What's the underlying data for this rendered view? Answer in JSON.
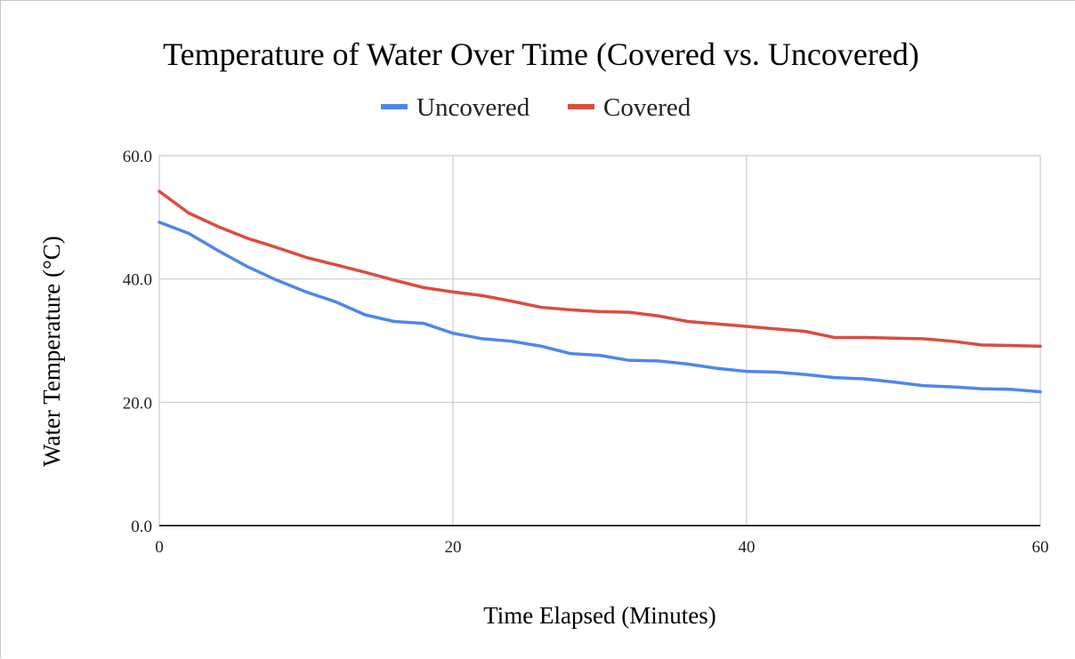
{
  "chart_data": {
    "type": "line",
    "title": "Temperature of Water Over Time (Covered vs. Uncovered)",
    "xlabel": "Time Elapsed (Minutes)",
    "ylabel": "Water Temperature (°C)",
    "xlim": [
      0,
      60
    ],
    "ylim": [
      0,
      60
    ],
    "x_ticks": [
      "0",
      "20",
      "40",
      "60"
    ],
    "y_ticks": [
      "0.0",
      "20.0",
      "40.0",
      "60.0"
    ],
    "grid": true,
    "legend_position": "top",
    "x": [
      0,
      2,
      4,
      6,
      8,
      10,
      12,
      14,
      16,
      18,
      20,
      22,
      24,
      26,
      28,
      30,
      32,
      34,
      36,
      38,
      40,
      42,
      44,
      46,
      48,
      50,
      52,
      54,
      56,
      58,
      60
    ],
    "series": [
      {
        "name": "Uncovered",
        "color": "#4f86ec",
        "values": [
          49.2,
          47.4,
          44.6,
          42.0,
          39.8,
          37.9,
          36.3,
          34.2,
          33.1,
          32.8,
          31.2,
          30.3,
          29.9,
          29.1,
          27.9,
          27.6,
          26.8,
          26.7,
          26.2,
          25.5,
          25.0,
          24.9,
          24.5,
          24.0,
          23.8,
          23.3,
          22.7,
          22.5,
          22.2,
          22.1,
          21.7
        ]
      },
      {
        "name": "Covered",
        "color": "#db4c3f",
        "values": [
          54.2,
          50.7,
          48.5,
          46.6,
          45.1,
          43.5,
          42.3,
          41.1,
          39.8,
          38.6,
          37.9,
          37.3,
          36.4,
          35.4,
          35.0,
          34.7,
          34.6,
          34.0,
          33.1,
          32.7,
          32.3,
          31.9,
          31.5,
          30.5,
          30.5,
          30.4,
          30.3,
          29.9,
          29.3,
          29.2,
          29.1
        ]
      }
    ]
  }
}
